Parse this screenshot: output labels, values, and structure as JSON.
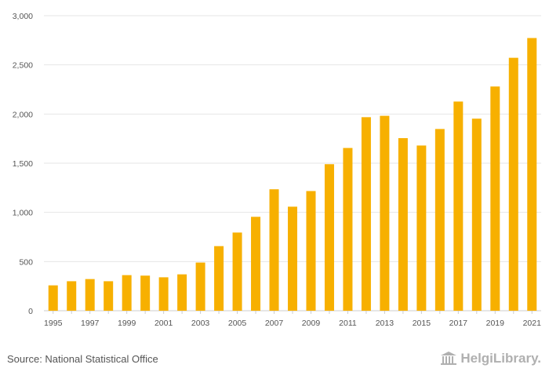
{
  "chart_data": {
    "type": "bar",
    "categories": [
      "1995",
      "1996",
      "1997",
      "1998",
      "1999",
      "2000",
      "2001",
      "2002",
      "2003",
      "2004",
      "2005",
      "2006",
      "2007",
      "2008",
      "2009",
      "2010",
      "2011",
      "2012",
      "2013",
      "2014",
      "2015",
      "2016",
      "2017",
      "2018",
      "2019",
      "2020",
      "2021"
    ],
    "values": [
      258,
      300,
      322,
      300,
      362,
      357,
      340,
      370,
      490,
      657,
      795,
      955,
      1235,
      1058,
      1217,
      1490,
      1655,
      1968,
      1982,
      1755,
      1680,
      1848,
      2127,
      1953,
      2280,
      2572,
      2773
    ],
    "x_tick_labels": [
      "1995",
      "1997",
      "1999",
      "2001",
      "2003",
      "2005",
      "2007",
      "2009",
      "2011",
      "2013",
      "2015",
      "2017",
      "2019",
      "2021"
    ],
    "y_ticks": [
      0,
      500,
      1000,
      1500,
      2000,
      2500,
      3000
    ],
    "y_tick_labels": [
      "0",
      "500",
      "1,000",
      "1,500",
      "2,000",
      "2,500",
      "3,000"
    ],
    "ylim": [
      0,
      3000
    ],
    "title": "",
    "xlabel": "",
    "ylabel": "",
    "grid": true,
    "bar_color": "#f7b000",
    "grid_color": "#e6e6e6"
  },
  "footer": {
    "source": "Source: National Statistical Office",
    "logo_text": "HelgiLibrary."
  }
}
